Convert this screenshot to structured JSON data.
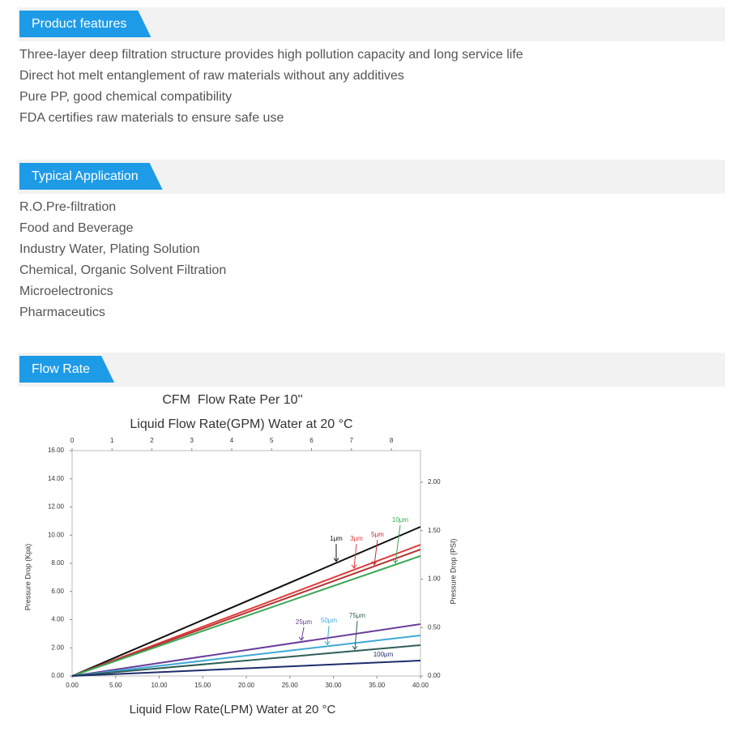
{
  "sections": [
    {
      "title": "Product features",
      "items": [
        "Three-layer deep filtration structure provides high pollution capacity and long service life",
        "Direct hot melt entanglement of raw materials without any additives",
        "Pure PP, good chemical compatibility",
        "FDA certifies raw materials to ensure safe use"
      ]
    },
    {
      "title": "Typical Application",
      "items": [
        "R.O.Pre-filtration",
        "Food and Beverage",
        "Industry Water, Plating Solution",
        "Chemical, Organic Solvent Filtration",
        "Microelectronics",
        "Pharmaceutics"
      ]
    },
    {
      "title": "Flow Rate"
    }
  ],
  "chart_data": {
    "type": "line",
    "title": "CFM  Flow Rate Per 10''",
    "subtitle": "Liquid Flow Rate(GPM) Water at 20 °C",
    "x_label": "Liquid Flow Rate(LPM) Water at 20 °C",
    "y_label": "Pressure Drop (Kpa)",
    "y2_label": "Pressure Drop (PSI)",
    "xlim": [
      0,
      40
    ],
    "xticks": [
      {
        "value": 0,
        "label": "0.00"
      },
      {
        "value": 5,
        "label": "5.00"
      },
      {
        "value": 10,
        "label": "10.00"
      },
      {
        "value": 15,
        "label": "15.00"
      },
      {
        "value": 20,
        "label": "20.00"
      },
      {
        "value": 25,
        "label": "25.00"
      },
      {
        "value": 30,
        "label": "30.00"
      },
      {
        "value": 35,
        "label": "35.00"
      },
      {
        "value": 40,
        "label": "40.00"
      }
    ],
    "x2lim": [
      0,
      8.73
    ],
    "x2ticks": [
      0,
      1,
      2,
      3,
      4,
      5,
      6,
      7,
      8
    ],
    "ylim": [
      0,
      16
    ],
    "yticks": [
      {
        "value": 0,
        "label": "0.00"
      },
      {
        "value": 2,
        "label": "2.00"
      },
      {
        "value": 4,
        "label": "4.00"
      },
      {
        "value": 6,
        "label": "6.00"
      },
      {
        "value": 8,
        "label": "8.00"
      },
      {
        "value": 10,
        "label": "10.00"
      },
      {
        "value": 12,
        "label": "12.00"
      },
      {
        "value": 14,
        "label": "14.00"
      },
      {
        "value": 16,
        "label": "16.00"
      }
    ],
    "y2lim": [
      0,
      2.326
    ],
    "y2ticks": [
      {
        "value": 0,
        "label": "0.00"
      },
      {
        "value": 0.5,
        "label": "0.50"
      },
      {
        "value": 1,
        "label": "1.00"
      },
      {
        "value": 1.5,
        "label": "1.50"
      },
      {
        "value": 2,
        "label": "2.00"
      }
    ],
    "series": [
      {
        "name": "1μm",
        "color": "#111111",
        "x": [
          0,
          40
        ],
        "values": [
          0,
          10.59
        ]
      },
      {
        "name": "3μm",
        "color": "#e23b3b",
        "x": [
          0,
          40
        ],
        "values": [
          0,
          9.32
        ]
      },
      {
        "name": "5μm",
        "color": "#b83232",
        "x": [
          0,
          40
        ],
        "values": [
          0,
          8.98
        ]
      },
      {
        "name": "10μm",
        "color": "#3aa655",
        "x": [
          0,
          40
        ],
        "values": [
          0,
          8.52
        ]
      },
      {
        "name": "25μm",
        "color": "#6a3d9a",
        "x": [
          0,
          40
        ],
        "values": [
          0,
          3.68
        ]
      },
      {
        "name": "50μm",
        "color": "#3fa9d6",
        "x": [
          0,
          40
        ],
        "values": [
          0,
          2.88
        ]
      },
      {
        "name": "75μm",
        "color": "#2e5e57",
        "x": [
          0,
          40
        ],
        "values": [
          0,
          2.19
        ]
      },
      {
        "name": "100μm",
        "color": "#1f2d6b",
        "x": [
          0,
          40
        ],
        "values": [
          0,
          1.09
        ]
      }
    ]
  }
}
